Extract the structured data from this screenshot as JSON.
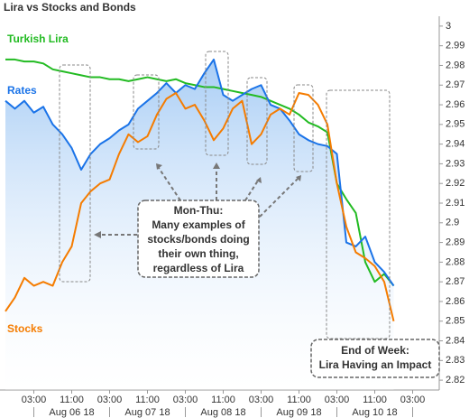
{
  "chart_data": {
    "type": "line",
    "title": "Lira vs Stocks and Bonds",
    "categories": [
      null,
      null,
      null,
      "03:00",
      null,
      null,
      null,
      "11:00",
      null,
      null,
      null,
      "03:00",
      null,
      null,
      null,
      "11:00",
      null,
      null,
      null,
      "03:00",
      null,
      null,
      null,
      "11:00",
      null,
      null,
      null,
      "03:00",
      null,
      null,
      null,
      "11:00",
      null,
      null,
      null,
      "03:00",
      null,
      null,
      null,
      "11:00",
      null,
      null,
      null,
      "03:00",
      null,
      null
    ],
    "date_labels": [
      "Aug 06 18",
      "Aug 07 18",
      "Aug 08 18",
      "Aug 09 18",
      "Aug 10 18"
    ],
    "series": [
      {
        "name": "Turkish Lira",
        "color": "#22bb22",
        "values": [
          2.983,
          2.983,
          2.982,
          2.982,
          2.981,
          2.978,
          2.977,
          2.976,
          2.975,
          2.974,
          2.974,
          2.973,
          2.973,
          2.972,
          2.973,
          2.974,
          2.973,
          2.972,
          2.973,
          2.971,
          2.97,
          2.969,
          2.969,
          2.968,
          2.967,
          2.966,
          2.965,
          2.964,
          2.962,
          2.96,
          2.958,
          2.955,
          2.951,
          2.949,
          2.946,
          2.92,
          2.912,
          2.905,
          2.88,
          2.87,
          2.874,
          2.868,
          null,
          null,
          null,
          null
        ]
      },
      {
        "name": "Rates",
        "color": "#1a73e8",
        "values": [
          2.962,
          2.958,
          2.962,
          2.956,
          2.959,
          2.95,
          2.945,
          2.938,
          2.927,
          2.935,
          2.94,
          2.943,
          2.947,
          2.95,
          2.958,
          2.962,
          2.966,
          2.971,
          2.966,
          2.97,
          2.968,
          2.976,
          2.983,
          2.965,
          2.962,
          2.965,
          2.968,
          2.97,
          2.96,
          2.958,
          2.952,
          2.945,
          2.942,
          2.94,
          2.939,
          2.935,
          2.89,
          2.888,
          2.893,
          2.88,
          2.875,
          2.868,
          null,
          null,
          null,
          null
        ]
      },
      {
        "name": "Stocks",
        "color": "#f57c00",
        "values": [
          2.855,
          2.862,
          2.872,
          2.868,
          2.87,
          2.868,
          2.88,
          2.888,
          2.91,
          2.916,
          2.92,
          2.922,
          2.935,
          2.945,
          2.941,
          2.944,
          2.955,
          2.963,
          2.966,
          2.958,
          2.96,
          2.952,
          2.942,
          2.948,
          2.958,
          2.962,
          2.94,
          2.945,
          2.955,
          2.958,
          2.955,
          2.966,
          2.965,
          2.96,
          2.95,
          2.92,
          2.898,
          2.885,
          2.882,
          2.878,
          2.87,
          2.85,
          null,
          null,
          null,
          null
        ]
      }
    ],
    "ylim": [
      2.815,
      3.005
    ],
    "yticks": [
      2.82,
      2.83,
      2.84,
      2.85,
      2.86,
      2.87,
      2.88,
      2.89,
      2.9,
      2.91,
      2.92,
      2.93,
      2.94,
      2.95,
      2.96,
      2.97,
      2.98,
      2.99,
      3
    ],
    "annotations": [
      "Mon-Thu:",
      "Many examples of",
      "stocks/bonds doing",
      "their own thing,",
      "regardless of Lira",
      "End of Week:",
      "Lira Having an Impact"
    ]
  }
}
